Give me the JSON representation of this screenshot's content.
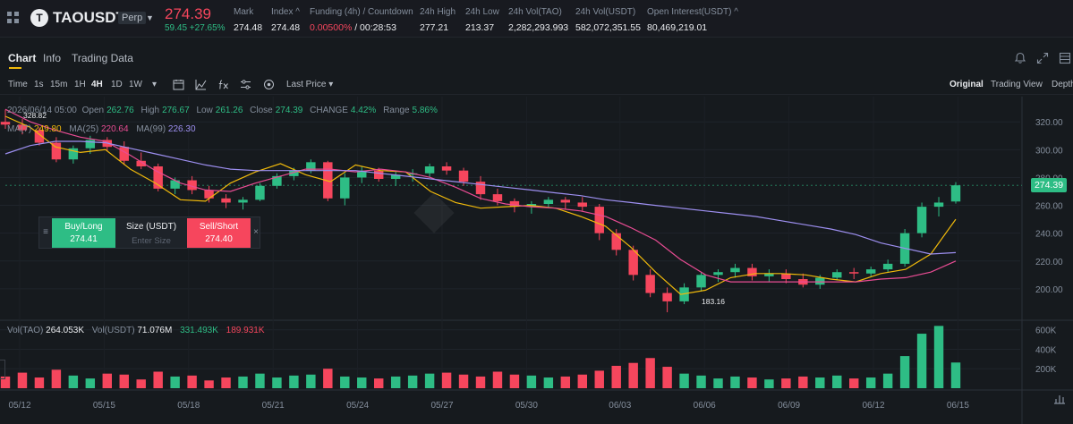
{
  "ticker": {
    "icon_letter": "T",
    "symbol": "TAOUSDT",
    "badge": "Perp",
    "last_price": "274.39",
    "change": "59.45 +27.65%",
    "stats": [
      {
        "label": "Mark",
        "value": "274.48"
      },
      {
        "label": "Index ^",
        "value": "274.48"
      },
      {
        "label": "Funding (4h) / Countdown",
        "value_red": "0.00500%",
        "value": " / 00:28:53"
      },
      {
        "label": "24h High",
        "value": "277.21"
      },
      {
        "label": "24h Low",
        "value": "213.37"
      },
      {
        "label": "24h Vol(TAO)",
        "value": "2,282,293.993"
      },
      {
        "label": "24h Vol(USDT)",
        "value": "582,072,351.55"
      },
      {
        "label": "Open Interest(USDT) ^",
        "value": "80,469,219.01"
      }
    ]
  },
  "tabs": [
    "Chart",
    "Info",
    "Trading Data"
  ],
  "toolbar": {
    "intervals": [
      "Time",
      "1s",
      "15m",
      "1H",
      "4H",
      "1D",
      "1W"
    ],
    "active_interval": "4H",
    "price_type": "Last Price",
    "views": [
      "Original",
      "Trading View",
      "Depth"
    ],
    "active_view": "Original"
  },
  "legend": {
    "ohlc": {
      "date": "2026/06/14 05:00",
      "open_label": "Open",
      "open": "262.76",
      "high_label": "High",
      "high": "276.67",
      "low_label": "Low",
      "low": "261.26",
      "close_label": "Close",
      "close": "274.39",
      "change_label": "CHANGE",
      "change": "4.42%",
      "range_label": "Range",
      "range": "5.86%"
    },
    "ma7_label": "MA(7)",
    "ma7": "249.80",
    "ma25_label": "MA(25)",
    "ma25": "220.64",
    "ma99_label": "MA(99)",
    "ma99": "226.30",
    "vol_tao_label": "Vol(TAO)",
    "vol_tao": "264.053K",
    "vol_usdt_label": "Vol(USDT)",
    "vol_usdt": "71.076M",
    "vol_ma1": "331.493K",
    "vol_ma2": "189.931K"
  },
  "annotations": {
    "high_marker": "328.82",
    "low_marker": "183.16",
    "current_price_tag": "274.39"
  },
  "order_widget": {
    "buy_label": "Buy/Long",
    "buy_price": "274.41",
    "size_label": "Size (USDT)",
    "size_placeholder": "Enter Size",
    "sell_label": "Sell/Short",
    "sell_price": "274.40"
  },
  "colors": {
    "up": "#2ebd85",
    "down": "#f6465d",
    "ma7": "#f0b90b",
    "ma25": "#e84c93",
    "ma99": "#9d8ff0",
    "accent": "#f0b90b",
    "background": "#161a1e"
  },
  "chart_data": {
    "type": "candlestick",
    "interval": "4H",
    "price_axis": {
      "ticks": [
        "320.00",
        "300.00",
        "280.00",
        "260.00",
        "240.00",
        "220.00",
        "200.00"
      ],
      "ylim": [
        180,
        333
      ]
    },
    "volume_axis": {
      "ticks": [
        "600K",
        "400K",
        "200K"
      ],
      "ylim": [
        0,
        680
      ]
    },
    "x_ticks": [
      "05/12",
      "05/15",
      "05/18",
      "05/21",
      "05/24",
      "05/27",
      "05/30",
      "06/03",
      "06/06",
      "06/09",
      "06/12",
      "06/15"
    ],
    "series": [
      {
        "name": "MA(7)",
        "values": [
          324,
          316,
          302,
          298,
          300,
          286,
          276,
          264,
          263,
          276,
          284,
          290,
          282,
          277,
          289,
          285,
          284,
          270,
          262,
          258,
          259,
          260,
          258,
          252,
          245,
          230,
          212,
          196,
          199,
          208,
          211,
          211,
          210,
          207,
          205,
          211,
          214,
          225,
          250
        ]
      },
      {
        "name": "MA(25)",
        "values": [
          329,
          320,
          314,
          309,
          306,
          296,
          285,
          276,
          271,
          270,
          276,
          281,
          286,
          286,
          284,
          286,
          284,
          280,
          273,
          265,
          261,
          259,
          258,
          256,
          252,
          244,
          235,
          221,
          210,
          205,
          205,
          205,
          205,
          205,
          205,
          207,
          208,
          212,
          220
        ]
      },
      {
        "name": "MA(99)",
        "values": [
          297,
          303,
          306,
          306,
          305,
          301,
          297,
          293,
          289,
          286,
          285,
          285,
          285,
          285,
          285,
          283,
          281,
          279,
          277,
          275,
          273,
          271,
          269,
          267,
          264,
          262,
          260,
          258,
          256,
          254,
          252,
          249,
          246,
          243,
          239,
          233,
          229,
          225,
          226
        ]
      },
      {
        "name": "Candles (open/high/low/close)",
        "values": [
          [
            320,
            328.8,
            315,
            318
          ],
          [
            318,
            322,
            311,
            314
          ],
          [
            314,
            316,
            303,
            305
          ],
          [
            305,
            309,
            291,
            293
          ],
          [
            293,
            303,
            290,
            301
          ],
          [
            301,
            310,
            297,
            307
          ],
          [
            307,
            309,
            299,
            302
          ],
          [
            302,
            306,
            289,
            292
          ],
          [
            292,
            298,
            286,
            288
          ],
          [
            288,
            290,
            270,
            272
          ],
          [
            272,
            280,
            268,
            278
          ],
          [
            278,
            281,
            268,
            271
          ],
          [
            271,
            274,
            262,
            265
          ],
          [
            265,
            268,
            258,
            262
          ],
          [
            262,
            266,
            257,
            264
          ],
          [
            264,
            276,
            263,
            274
          ],
          [
            274,
            283,
            272,
            281
          ],
          [
            281,
            287,
            278,
            285
          ],
          [
            285,
            293,
            283,
            291
          ],
          [
            291,
            292,
            263,
            265
          ],
          [
            265,
            283,
            260,
            280
          ],
          [
            280,
            288,
            276,
            285
          ],
          [
            285,
            287,
            277,
            279
          ],
          [
            279,
            284,
            274,
            282
          ],
          [
            282,
            286,
            277,
            283
          ],
          [
            283,
            290,
            280,
            288
          ],
          [
            288,
            291,
            282,
            285
          ],
          [
            285,
            287,
            274,
            277
          ],
          [
            277,
            281,
            264,
            268
          ],
          [
            268,
            272,
            260,
            263
          ],
          [
            263,
            265,
            255,
            259
          ],
          [
            259,
            263,
            254,
            261
          ],
          [
            261,
            266,
            258,
            264
          ],
          [
            264,
            266,
            257,
            262
          ],
          [
            262,
            266,
            256,
            259
          ],
          [
            259,
            261,
            235,
            240
          ],
          [
            240,
            243,
            224,
            228
          ],
          [
            228,
            231,
            206,
            210
          ],
          [
            210,
            214,
            194,
            197
          ],
          [
            197,
            201,
            183.16,
            191
          ],
          [
            191,
            204,
            189,
            201
          ],
          [
            201,
            212,
            198,
            210
          ],
          [
            210,
            214,
            205,
            212
          ],
          [
            212,
            218,
            208,
            215
          ],
          [
            215,
            218,
            206,
            209
          ],
          [
            209,
            214,
            205,
            211
          ],
          [
            211,
            214,
            204,
            207
          ],
          [
            207,
            211,
            201,
            203
          ],
          [
            203,
            210,
            200,
            208
          ],
          [
            208,
            214,
            206,
            212
          ],
          [
            212,
            215,
            207,
            211
          ],
          [
            211,
            216,
            209,
            214
          ],
          [
            214,
            221,
            212,
            218
          ],
          [
            218,
            243,
            216,
            240
          ],
          [
            240,
            262,
            237,
            259
          ],
          [
            259,
            266,
            252,
            262
          ],
          [
            262.76,
            276.67,
            261.26,
            274.39
          ]
        ]
      },
      {
        "name": "Vol(TAO)",
        "values": [
          120,
          160,
          110,
          190,
          130,
          100,
          150,
          140,
          90,
          170,
          120,
          130,
          80,
          110,
          120,
          150,
          110,
          130,
          140,
          200,
          120,
          110,
          100,
          120,
          130,
          150,
          160,
          140,
          120,
          170,
          140,
          130,
          110,
          120,
          140,
          180,
          230,
          260,
          310,
          220,
          150,
          130,
          100,
          120,
          110,
          90,
          100,
          120,
          110,
          130,
          100,
          110,
          150,
          330,
          560,
          640,
          264.053
        ]
      }
    ]
  }
}
